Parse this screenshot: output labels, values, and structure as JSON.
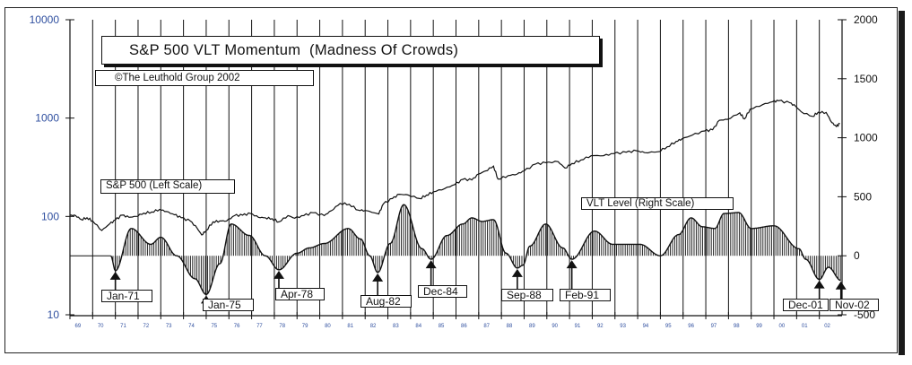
{
  "chart_data": {
    "type": "line",
    "title": "S&P 500 VLT Momentum  (Madness Of Crowds)",
    "subtitle": "©The Leuthold Group 2002",
    "left_axis": {
      "scale": "log",
      "range": [
        10,
        10000
      ],
      "ticks": [
        "10",
        "100",
        "1000",
        "10000"
      ],
      "tick_values": [
        10,
        100,
        1000,
        10000
      ],
      "color": "#2f4f9f"
    },
    "right_axis": {
      "scale": "linear",
      "range": [
        -500,
        2000
      ],
      "ticks": [
        "-500",
        "0",
        "500",
        "1000",
        "1500",
        "2000"
      ],
      "tick_values": [
        -500,
        0,
        500,
        1000,
        1500,
        2000
      ]
    },
    "x_axis": {
      "range": [
        1969,
        2003
      ],
      "tick_labels": [
        "69",
        "70",
        "71",
        "72",
        "73",
        "74",
        "75",
        "76",
        "77",
        "78",
        "79",
        "80",
        "81",
        "82",
        "83",
        "84",
        "85",
        "86",
        "87",
        "88",
        "89",
        "90",
        "91",
        "92",
        "93",
        "94",
        "95",
        "96",
        "97",
        "98",
        "99",
        "00",
        "01",
        "02"
      ]
    },
    "grid": "vertical yearly",
    "series": [
      {
        "name": "S&P 500 (Left Scale)",
        "axis": "left",
        "style": "line",
        "x": [
          1969.0,
          1969.25,
          1969.5,
          1969.75,
          1970.0,
          1970.4,
          1970.75,
          1971.0,
          1971.3,
          1971.6,
          1971.9,
          1972.25,
          1972.6,
          1972.95,
          1973.25,
          1973.6,
          1973.9,
          1974.3,
          1974.6,
          1974.8,
          1975.0,
          1975.3,
          1975.6,
          1975.9,
          1976.25,
          1976.6,
          1976.95,
          1977.3,
          1977.6,
          1977.9,
          1978.2,
          1978.6,
          1978.9,
          1979.3,
          1979.7,
          1980.2,
          1980.5,
          1980.9,
          1981.3,
          1981.7,
          1982.0,
          1982.6,
          1982.8,
          1983.2,
          1983.5,
          1983.9,
          1984.4,
          1984.7,
          1985.0,
          1985.5,
          1985.95,
          1986.3,
          1986.7,
          1987.0,
          1987.3,
          1987.65,
          1987.85,
          1988.3,
          1988.7,
          1989.0,
          1989.5,
          1989.95,
          1990.5,
          1990.8,
          1991.1,
          1991.5,
          1991.95,
          1992.5,
          1992.95,
          1993.5,
          1993.95,
          1994.3,
          1994.9,
          1995.3,
          1995.7,
          1995.95,
          1996.4,
          1996.95,
          1997.3,
          1997.6,
          1997.95,
          1998.5,
          1998.7,
          1998.95,
          1999.5,
          1999.95,
          2000.2,
          2000.7,
          2000.95,
          2001.2,
          2001.7,
          2001.95,
          2002.3,
          2002.55,
          2002.75,
          2002.9
        ],
        "y": [
          103,
          102,
          93,
          97,
          90,
          72,
          84,
          92,
          103,
          98,
          100,
          108,
          111,
          118,
          112,
          104,
          97,
          90,
          76,
          65,
          72,
          88,
          90,
          90,
          102,
          103,
          107,
          98,
          97,
          95,
          88,
          102,
          96,
          102,
          109,
          102,
          114,
          136,
          133,
          116,
          115,
          106,
          134,
          152,
          168,
          165,
          152,
          165,
          178,
          192,
          211,
          238,
          235,
          270,
          290,
          325,
          240,
          260,
          270,
          290,
          340,
          352,
          360,
          310,
          345,
          375,
          415,
          415,
          435,
          450,
          465,
          445,
          455,
          510,
          580,
          615,
          670,
          740,
          760,
          950,
          970,
          1130,
          980,
          1230,
          1370,
          1469,
          1500,
          1430,
          1320,
          1160,
          1040,
          1148,
          1140,
          900,
          820,
          880
        ]
      },
      {
        "name": "VLT Level (Right Scale)",
        "axis": "right",
        "style": "hatched-area",
        "x": [
          1970.8,
          1971.0,
          1971.7,
          1972.56,
          1973.0,
          1973.7,
          1974.5,
          1975.0,
          1975.6,
          1976.1,
          1976.9,
          1977.6,
          1978.2,
          1979.0,
          1979.55,
          1980.2,
          1981.25,
          1981.8,
          1982.2,
          1982.55,
          1983.1,
          1983.7,
          1984.5,
          1984.9,
          1985.6,
          1986.3,
          1986.7,
          1987.15,
          1987.65,
          1988.2,
          1988.7,
          1988.95,
          1989.25,
          1989.95,
          1990.7,
          1991.1,
          1992.1,
          1992.9,
          1994.1,
          1995.0,
          1995.8,
          1996.35,
          1996.85,
          1997.4,
          1997.8,
          1998.45,
          1999.0,
          2000.0,
          2001.1,
          2001.4,
          2002.0,
          2002.4,
          2002.95
        ],
        "y": [
          0,
          -127,
          231,
          97,
          157,
          0,
          -194,
          -328,
          -67,
          269,
          172,
          0,
          -119,
          22,
          67,
          104,
          231,
          142,
          0,
          -142,
          104,
          433,
          60,
          -30,
          172,
          269,
          321,
          291,
          306,
          22,
          -104,
          -80,
          82,
          269,
          67,
          -30,
          209,
          97,
          97,
          0,
          179,
          321,
          246,
          231,
          358,
          366,
          231,
          254,
          60,
          -30,
          -201,
          -97,
          -209
        ]
      }
    ],
    "annotations": [
      {
        "label": "Jan-71",
        "x": 1971.0,
        "y": -127
      },
      {
        "label": "Jan-75",
        "x": 1975.0,
        "y": -328
      },
      {
        "label": "Apr-78",
        "x": 1978.2,
        "y": -119
      },
      {
        "label": "Aug-82",
        "x": 1982.55,
        "y": -142
      },
      {
        "label": "Dec-84",
        "x": 1984.9,
        "y": -30
      },
      {
        "label": "Sep-88",
        "x": 1988.7,
        "y": -104
      },
      {
        "label": "Feb-91",
        "x": 1991.1,
        "y": -30
      },
      {
        "label": "Dec-01",
        "x": 2002.0,
        "y": -201
      },
      {
        "label": "Nov-02",
        "x": 2002.95,
        "y": -209
      }
    ]
  }
}
